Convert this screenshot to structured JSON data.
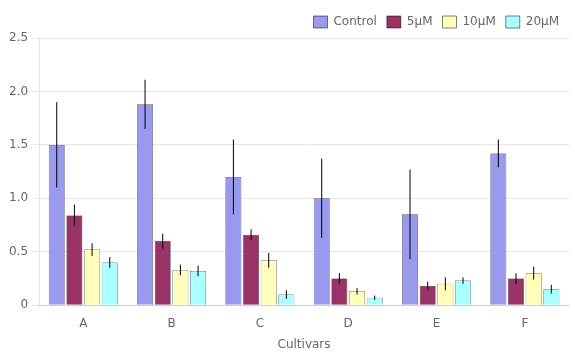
{
  "chart_data": {
    "type": "bar",
    "xlabel": "Cultivars",
    "categories": [
      "A",
      "B",
      "C",
      "D",
      "E",
      "F"
    ],
    "series": [
      {
        "name": "Control",
        "color": "#9999ee",
        "values": [
          1.5,
          1.88,
          1.2,
          1.0,
          0.85,
          1.42
        ],
        "errors": [
          0.4,
          0.23,
          0.35,
          0.37,
          0.42,
          0.13
        ]
      },
      {
        "name": "5μM",
        "color": "#993366",
        "values": [
          0.84,
          0.6,
          0.66,
          0.25,
          0.18,
          0.25
        ],
        "errors": [
          0.1,
          0.07,
          0.05,
          0.05,
          0.04,
          0.05
        ]
      },
      {
        "name": "10μM",
        "color": "#ffffbb",
        "values": [
          0.52,
          0.33,
          0.42,
          0.13,
          0.2,
          0.3
        ],
        "errors": [
          0.06,
          0.05,
          0.07,
          0.03,
          0.06,
          0.06
        ]
      },
      {
        "name": "20μM",
        "color": "#aaffff",
        "values": [
          0.4,
          0.32,
          0.1,
          0.07,
          0.23,
          0.15
        ],
        "errors": [
          0.05,
          0.05,
          0.04,
          0.02,
          0.03,
          0.04
        ]
      }
    ],
    "ylim": [
      0,
      2.5
    ],
    "yticks": [
      0,
      0.5,
      {
        "value": 1.0,
        "label": "1.0"
      },
      1.5,
      {
        "value": 2.0,
        "label": "2.0"
      },
      2.5
    ],
    "grid": "y",
    "legend": "upper right"
  }
}
